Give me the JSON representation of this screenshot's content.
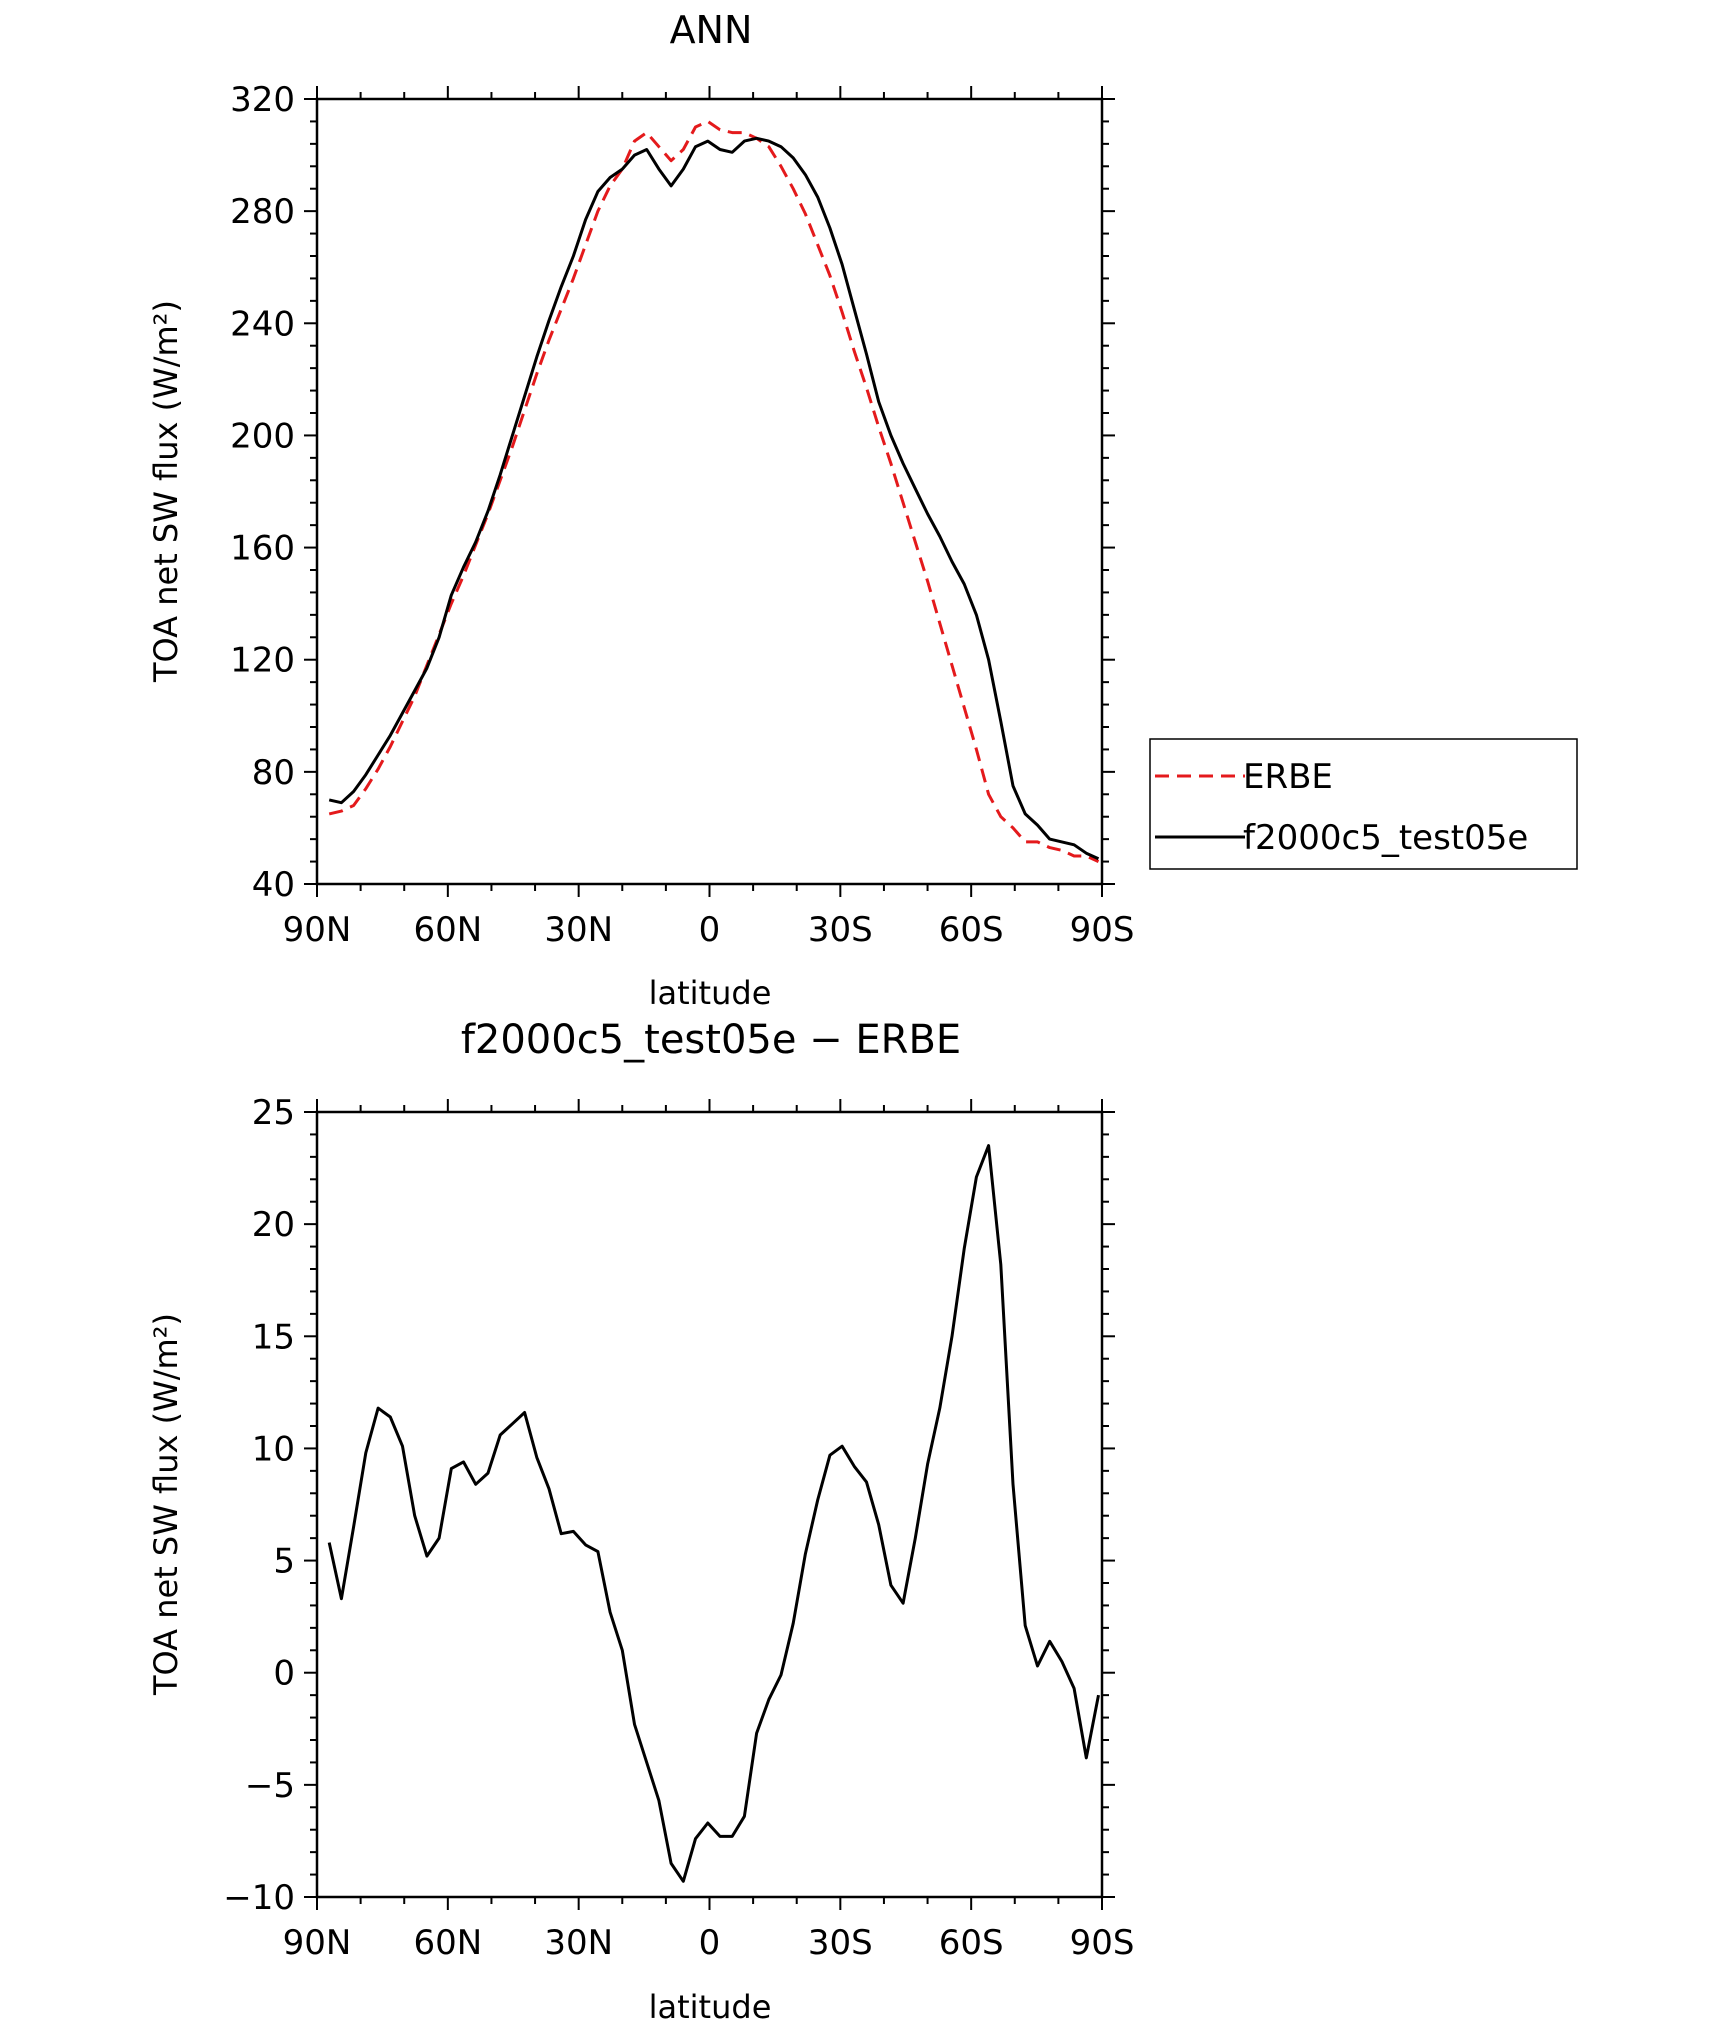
{
  "chart_data": [
    {
      "type": "line",
      "title": "ANN",
      "xlabel": "latitude",
      "ylabel": "TOA net SW flux (W/m²)",
      "ylim": [
        40,
        320
      ],
      "xlim": [
        90,
        -90
      ],
      "x_tick_values": [
        90,
        60,
        30,
        0,
        -30,
        -60,
        -90
      ],
      "x_tick_labels": [
        "90N",
        "60N",
        "30N",
        "0",
        "30S",
        "60S",
        "90S"
      ],
      "y_tick_values": [
        40,
        80,
        120,
        160,
        200,
        240,
        280,
        320
      ],
      "y_tick_labels": [
        "40",
        "80",
        "120",
        "160",
        "200",
        "240",
        "280",
        "320"
      ],
      "legend_position": "right",
      "x": [
        87.2,
        84.4,
        81.6,
        78.8,
        76.0,
        73.2,
        70.4,
        67.6,
        64.8,
        62.0,
        59.2,
        56.4,
        53.6,
        50.8,
        48.0,
        45.2,
        42.4,
        39.6,
        36.8,
        34.0,
        31.2,
        28.4,
        25.6,
        22.8,
        20.0,
        17.2,
        14.4,
        11.6,
        8.8,
        6.0,
        3.2,
        0.4,
        -2.4,
        -5.2,
        -8.0,
        -10.8,
        -13.6,
        -16.4,
        -19.2,
        -22.0,
        -24.8,
        -27.6,
        -30.4,
        -33.2,
        -36.0,
        -38.8,
        -41.6,
        -44.4,
        -47.2,
        -50.0,
        -52.8,
        -55.6,
        -58.4,
        -61.2,
        -64.0,
        -66.8,
        -69.6,
        -72.4,
        -75.2,
        -78.0,
        -80.8,
        -83.6,
        -86.4,
        -89.2
      ],
      "series": [
        {
          "name": "ERBE",
          "color": "#e41a1c",
          "dash": "dashed",
          "values": [
            65,
            66,
            68,
            74,
            81,
            89,
            98,
            107,
            118,
            129,
            140,
            150,
            161,
            172,
            184,
            196,
            209,
            222,
            234,
            245,
            256,
            268,
            280,
            289,
            295,
            305,
            308,
            303,
            298,
            302,
            310,
            312,
            309,
            308,
            308,
            306,
            303,
            296,
            288,
            279,
            268,
            257,
            244,
            230,
            217,
            203,
            190,
            176,
            162,
            148,
            133,
            118,
            103,
            88,
            72,
            64,
            60,
            55,
            55,
            53,
            52,
            50,
            50,
            48
          ]
        },
        {
          "name": "f2000c5_test05e",
          "color": "#000000",
          "dash": "solid",
          "values": [
            70,
            69,
            73,
            79,
            86,
            93,
            101,
            109,
            117,
            128,
            143,
            153,
            162,
            173,
            186,
            200,
            214,
            228,
            241,
            253,
            264,
            277,
            287,
            292,
            295,
            300,
            302,
            295,
            289,
            295,
            303,
            305,
            302,
            301,
            305,
            306,
            305,
            303,
            299,
            293,
            285,
            274,
            261,
            245,
            229,
            212,
            200,
            190,
            181,
            172,
            164,
            155,
            147,
            136,
            120,
            98,
            75,
            65,
            61,
            56,
            55,
            54,
            51,
            49
          ]
        }
      ]
    },
    {
      "type": "line",
      "title": "f2000c5_test05e − ERBE",
      "xlabel": "latitude",
      "ylabel": "TOA net SW flux (W/m²)",
      "ylim": [
        -10,
        25
      ],
      "xlim": [
        90,
        -90
      ],
      "x_tick_values": [
        90,
        60,
        30,
        0,
        -30,
        -60,
        -90
      ],
      "x_tick_labels": [
        "90N",
        "60N",
        "30N",
        "0",
        "30S",
        "60S",
        "90S"
      ],
      "y_tick_values": [
        -10,
        -5,
        0,
        5,
        10,
        15,
        20,
        25
      ],
      "y_tick_labels": [
        "−10",
        "−5",
        "0",
        "5",
        "10",
        "15",
        "20",
        "25"
      ],
      "x": [
        87.2,
        84.4,
        81.6,
        78.8,
        76.0,
        73.2,
        70.4,
        67.6,
        64.8,
        62.0,
        59.2,
        56.4,
        53.6,
        50.8,
        48.0,
        45.2,
        42.4,
        39.6,
        36.8,
        34.0,
        31.2,
        28.4,
        25.6,
        22.8,
        20.0,
        17.2,
        14.4,
        11.6,
        8.8,
        6.0,
        3.2,
        0.4,
        -2.4,
        -5.2,
        -8.0,
        -10.8,
        -13.6,
        -16.4,
        -19.2,
        -22.0,
        -24.8,
        -27.6,
        -30.4,
        -33.2,
        -36.0,
        -38.8,
        -41.6,
        -44.4,
        -47.2,
        -50.0,
        -52.8,
        -55.6,
        -58.4,
        -61.2,
        -64.0,
        -66.8,
        -69.6,
        -72.4,
        -75.2,
        -78.0,
        -80.8,
        -83.6,
        -86.4,
        -89.2
      ],
      "series": [
        {
          "color": "#000000",
          "values": [
            5.8,
            3.3,
            6.5,
            9.8,
            11.8,
            11.4,
            10.1,
            7.0,
            5.2,
            6.0,
            9.1,
            9.4,
            8.4,
            8.9,
            10.6,
            11.1,
            11.6,
            9.6,
            8.2,
            6.2,
            6.3,
            5.7,
            5.4,
            2.7,
            1.0,
            -2.3,
            -4.0,
            -5.7,
            -8.5,
            -9.3,
            -7.4,
            -6.7,
            -7.3,
            -7.3,
            -6.4,
            -2.7,
            -1.2,
            -0.1,
            2.2,
            5.3,
            7.7,
            9.7,
            10.1,
            9.2,
            8.5,
            6.6,
            3.9,
            3.1,
            6.0,
            9.3,
            11.8,
            15.0,
            18.9,
            22.1,
            23.5,
            18.2,
            8.4,
            2.1,
            0.3,
            1.4,
            0.5,
            -0.7,
            -3.8,
            -1.0
          ]
        }
      ]
    }
  ]
}
